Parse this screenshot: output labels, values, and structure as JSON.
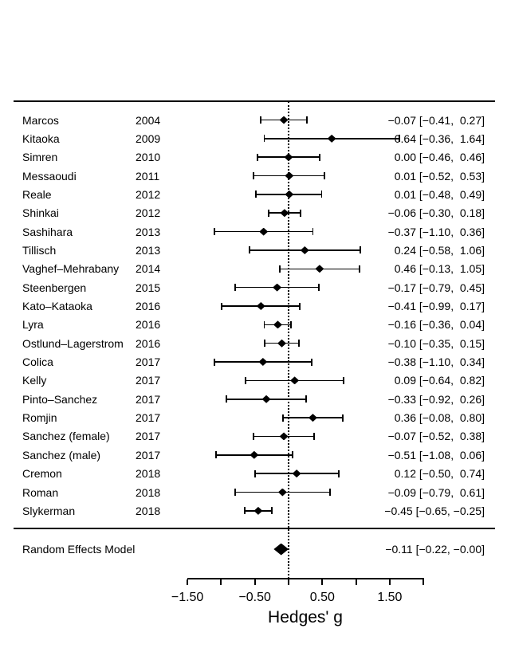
{
  "chart_data": {
    "type": "forest",
    "title": "",
    "xlabel": "Hedges' g",
    "axis": {
      "min": -1.5,
      "max": 2.0,
      "zero_reference_line": 0,
      "ticks": [
        {
          "g": -1.5,
          "label": "−1.50"
        },
        {
          "g": -1.0,
          "label": ""
        },
        {
          "g": -0.5,
          "label": "−0.50"
        },
        {
          "g": 0.0,
          "label": ""
        },
        {
          "g": 0.5,
          "label": "0.50"
        },
        {
          "g": 1.0,
          "label": ""
        },
        {
          "g": 1.5,
          "label": "1.50"
        },
        {
          "g": 2.0,
          "label": ""
        }
      ]
    },
    "studies": [
      {
        "name": "Marcos",
        "year": "2004",
        "estimate": -0.07,
        "ci_lower": -0.41,
        "ci_upper": 0.27,
        "label": "−0.07 [−0.41,  0.27]"
      },
      {
        "name": "Kitaoka",
        "year": "2009",
        "estimate": 0.64,
        "ci_lower": -0.36,
        "ci_upper": 1.64,
        "label": "0.64 [−0.36,  1.64]"
      },
      {
        "name": "Simren",
        "year": "2010",
        "estimate": 0.0,
        "ci_lower": -0.46,
        "ci_upper": 0.46,
        "label": "0.00 [−0.46,  0.46]"
      },
      {
        "name": "Messaoudi",
        "year": "2011",
        "estimate": 0.01,
        "ci_lower": -0.52,
        "ci_upper": 0.53,
        "label": "0.01 [−0.52,  0.53]"
      },
      {
        "name": "Reale",
        "year": "2012",
        "estimate": 0.01,
        "ci_lower": -0.48,
        "ci_upper": 0.49,
        "label": "0.01 [−0.48,  0.49]"
      },
      {
        "name": "Shinkai",
        "year": "2012",
        "estimate": -0.06,
        "ci_lower": -0.3,
        "ci_upper": 0.18,
        "label": "−0.06 [−0.30,  0.18]"
      },
      {
        "name": "Sashihara",
        "year": "2013",
        "estimate": -0.37,
        "ci_lower": -1.1,
        "ci_upper": 0.36,
        "label": "−0.37 [−1.10,  0.36]"
      },
      {
        "name": "Tillisch",
        "year": "2013",
        "estimate": 0.24,
        "ci_lower": -0.58,
        "ci_upper": 1.06,
        "label": "0.24 [−0.58,  1.06]"
      },
      {
        "name": "Vaghef–Mehrabany",
        "year": "2014",
        "estimate": 0.46,
        "ci_lower": -0.13,
        "ci_upper": 1.05,
        "label": "0.46 [−0.13,  1.05]"
      },
      {
        "name": "Steenbergen",
        "year": "2015",
        "estimate": -0.17,
        "ci_lower": -0.79,
        "ci_upper": 0.45,
        "label": "−0.17 [−0.79,  0.45]"
      },
      {
        "name": "Kato–Kataoka",
        "year": "2016",
        "estimate": -0.41,
        "ci_lower": -0.99,
        "ci_upper": 0.17,
        "label": "−0.41 [−0.99,  0.17]"
      },
      {
        "name": "Lyra",
        "year": "2016",
        "estimate": -0.16,
        "ci_lower": -0.36,
        "ci_upper": 0.04,
        "label": "−0.16 [−0.36,  0.04]"
      },
      {
        "name": "Ostlund–Lagerstrom",
        "year": "2016",
        "estimate": -0.1,
        "ci_lower": -0.35,
        "ci_upper": 0.15,
        "label": "−0.10 [−0.35,  0.15]"
      },
      {
        "name": "Colica",
        "year": "2017",
        "estimate": -0.38,
        "ci_lower": -1.1,
        "ci_upper": 0.34,
        "label": "−0.38 [−1.10,  0.34]"
      },
      {
        "name": "Kelly",
        "year": "2017",
        "estimate": 0.09,
        "ci_lower": -0.64,
        "ci_upper": 0.82,
        "label": "0.09 [−0.64,  0.82]"
      },
      {
        "name": "Pinto–Sanchez",
        "year": "2017",
        "estimate": -0.33,
        "ci_lower": -0.92,
        "ci_upper": 0.26,
        "label": "−0.33 [−0.92,  0.26]"
      },
      {
        "name": "Romjin",
        "year": "2017",
        "estimate": 0.36,
        "ci_lower": -0.08,
        "ci_upper": 0.8,
        "label": "0.36 [−0.08,  0.80]"
      },
      {
        "name": "Sanchez (female)",
        "year": "2017",
        "estimate": -0.07,
        "ci_lower": -0.52,
        "ci_upper": 0.38,
        "label": "−0.07 [−0.52,  0.38]"
      },
      {
        "name": "Sanchez (male)",
        "year": "2017",
        "estimate": -0.51,
        "ci_lower": -1.08,
        "ci_upper": 0.06,
        "label": "−0.51 [−1.08,  0.06]"
      },
      {
        "name": "Cremon",
        "year": "2018",
        "estimate": 0.12,
        "ci_lower": -0.5,
        "ci_upper": 0.74,
        "label": "0.12 [−0.50,  0.74]"
      },
      {
        "name": "Roman",
        "year": "2018",
        "estimate": -0.09,
        "ci_lower": -0.79,
        "ci_upper": 0.61,
        "label": "−0.09 [−0.79,  0.61]"
      },
      {
        "name": "Slykerman",
        "year": "2018",
        "estimate": -0.45,
        "ci_lower": -0.65,
        "ci_upper": -0.25,
        "label": "−0.45 [−0.65, −0.25]"
      }
    ],
    "summary": {
      "name": "Random Effects Model",
      "estimate": -0.11,
      "ci_lower": -0.22,
      "ci_upper": 0.0,
      "label": "−0.11 [−0.22, −0.00]"
    }
  },
  "colors": {
    "ink": "#000000",
    "background": "#ffffff"
  }
}
